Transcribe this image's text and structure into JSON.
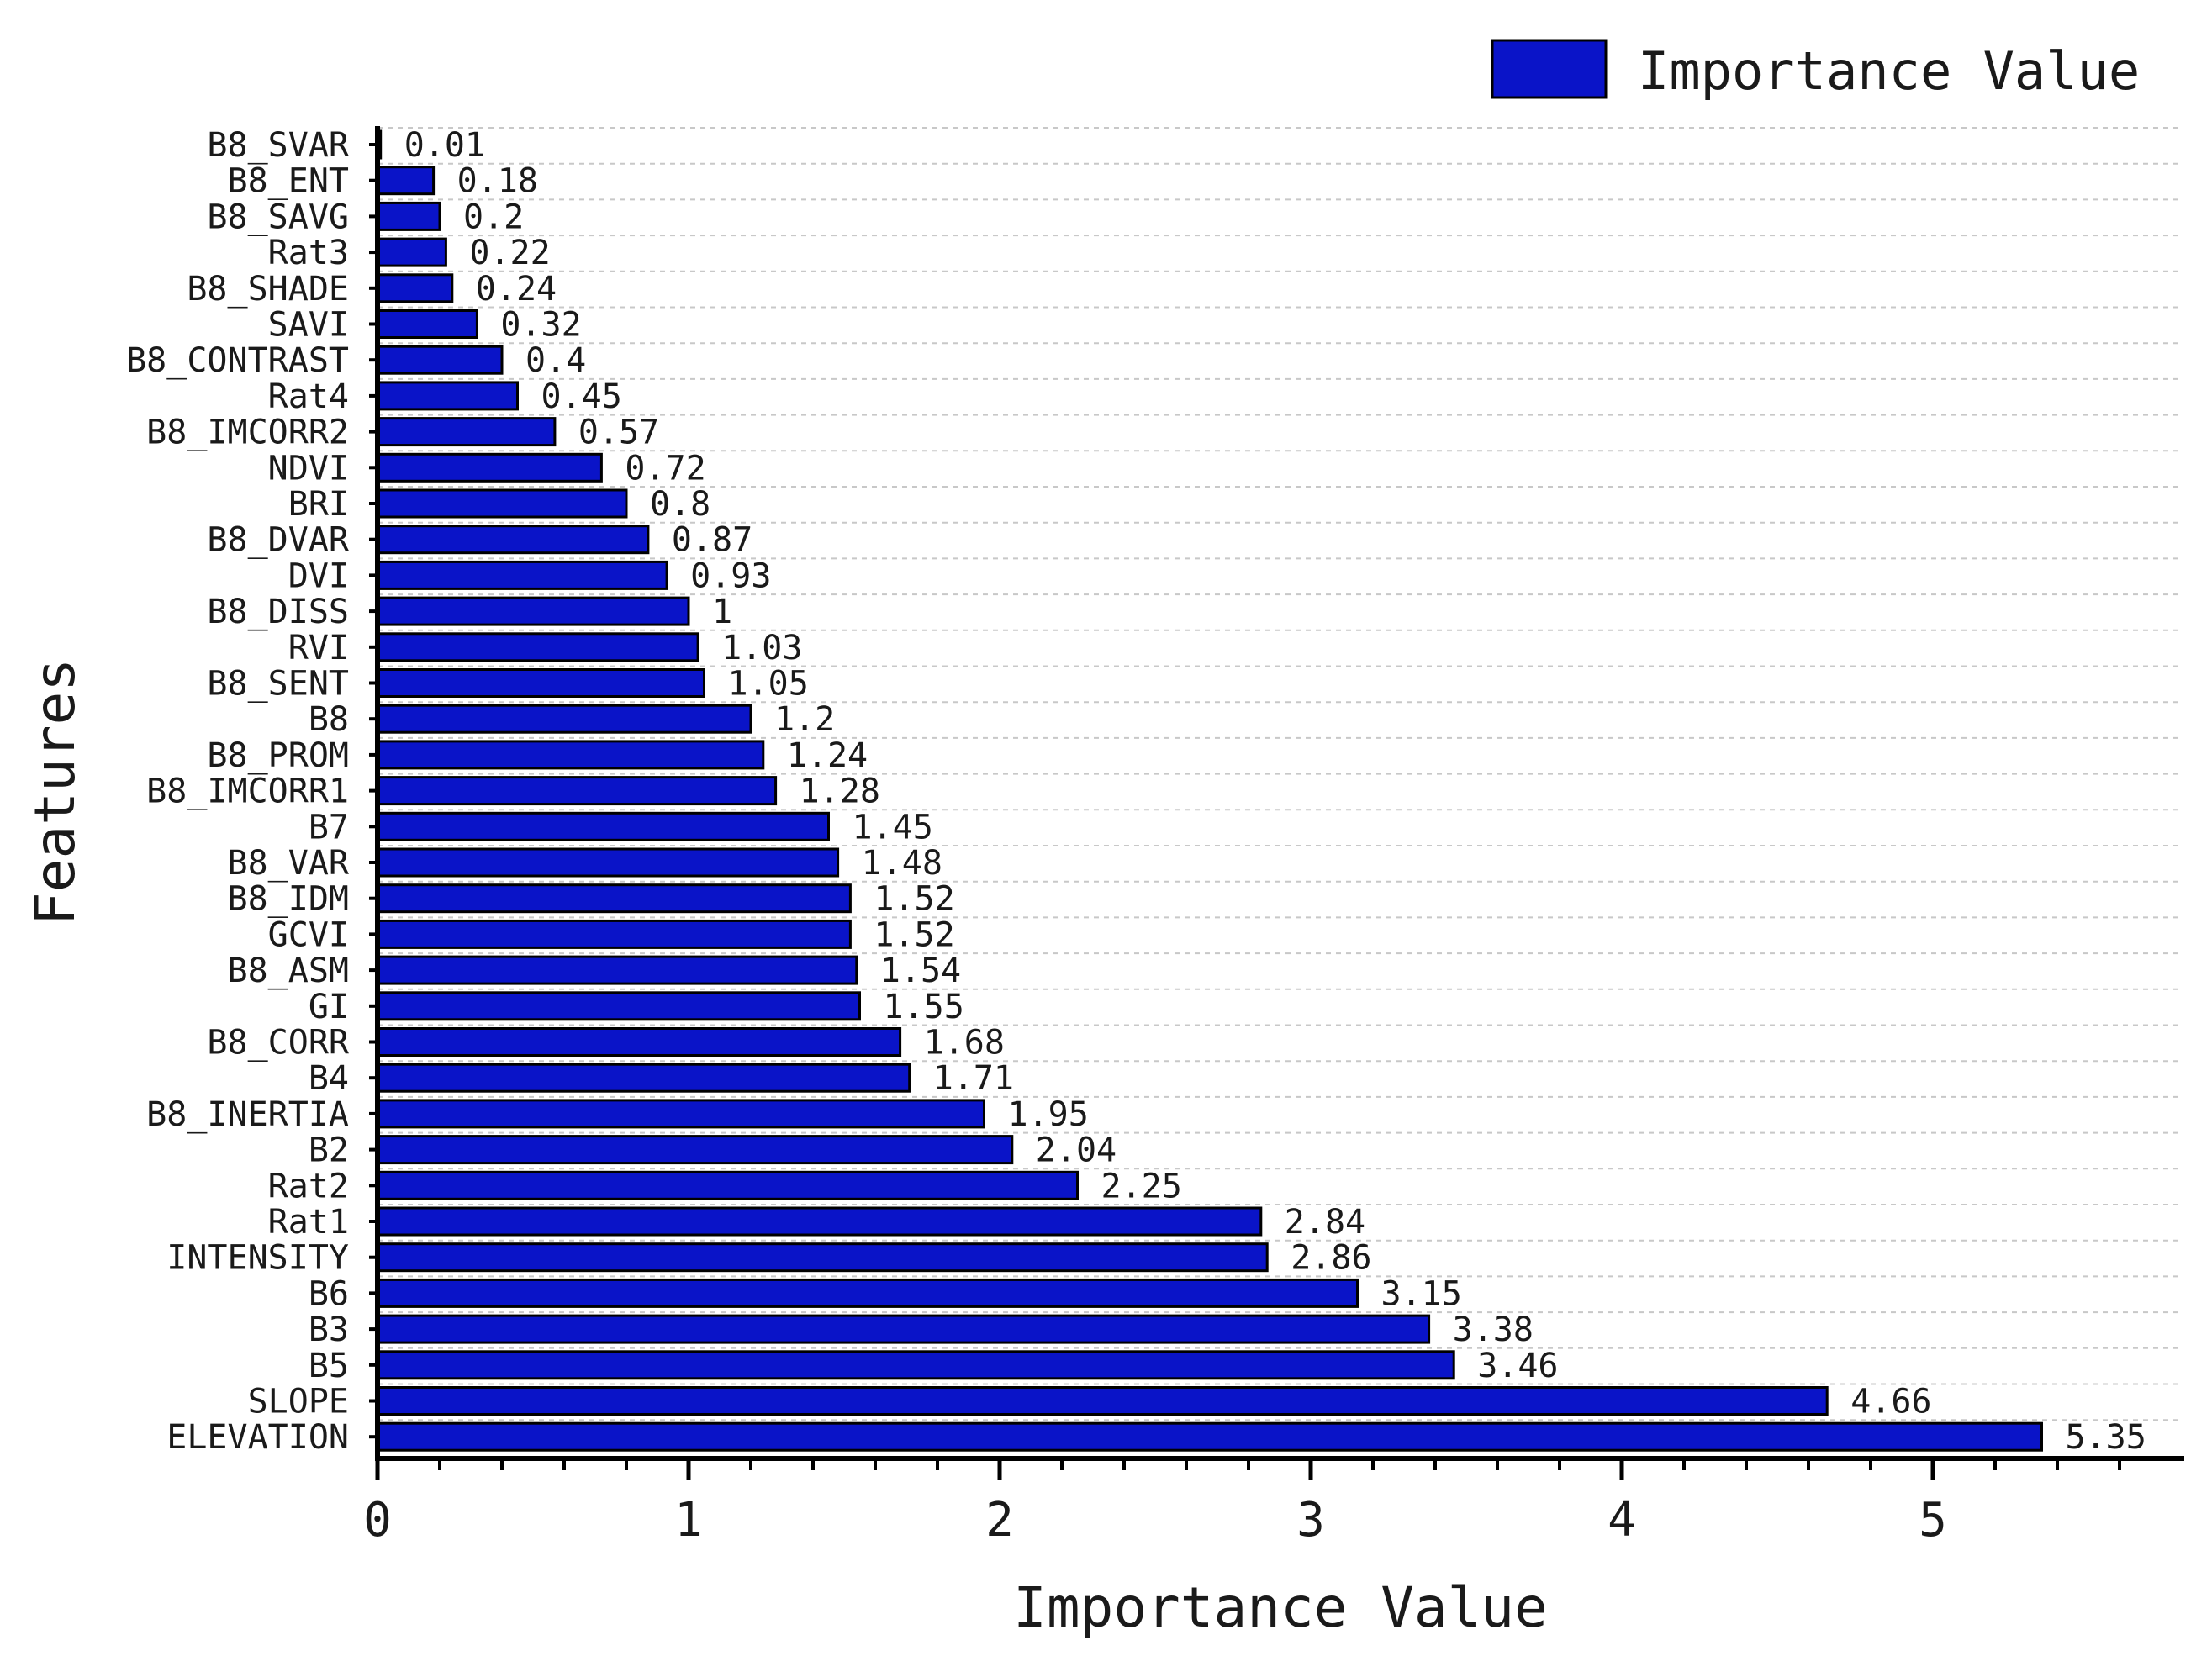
{
  "chart_data": {
    "type": "bar",
    "orientation": "horizontal",
    "categories": [
      "B8_SVAR",
      "B8_ENT",
      "B8_SAVG",
      "Rat3",
      "B8_SHADE",
      "SAVI",
      "B8_CONTRAST",
      "Rat4",
      "B8_IMCORR2",
      "NDVI",
      "BRI",
      "B8_DVAR",
      "DVI",
      "B8_DISS",
      "RVI",
      "B8_SENT",
      "B8",
      "B8_PROM",
      "B8_IMCORR1",
      "B7",
      "B8_VAR",
      "B8_IDM",
      "GCVI",
      "B8_ASM",
      "GI",
      "B8_CORR",
      "B4",
      "B8_INERTIA",
      "B2",
      "Rat2",
      "Rat1",
      "INTENSITY",
      "B6",
      "B3",
      "B5",
      "SLOPE",
      "ELEVATION"
    ],
    "values": [
      0.01,
      0.18,
      0.2,
      0.22,
      0.24,
      0.32,
      0.4,
      0.45,
      0.57,
      0.72,
      0.8,
      0.87,
      0.93,
      1,
      1.03,
      1.05,
      1.2,
      1.24,
      1.28,
      1.45,
      1.48,
      1.52,
      1.52,
      1.54,
      1.55,
      1.68,
      1.71,
      1.95,
      2.04,
      2.25,
      2.84,
      2.86,
      3.15,
      3.38,
      3.46,
      4.66,
      5.35
    ],
    "value_labels": [
      "0.01",
      "0.18",
      "0.2",
      "0.22",
      "0.24",
      "0.32",
      "0.4",
      "0.45",
      "0.57",
      "0.72",
      "0.8",
      "0.87",
      "0.93",
      "1",
      "1.03",
      "1.05",
      "1.2",
      "1.24",
      "1.28",
      "1.45",
      "1.48",
      "1.52",
      "1.52",
      "1.54",
      "1.55",
      "1.68",
      "1.71",
      "1.95",
      "2.04",
      "2.25",
      "2.84",
      "2.86",
      "3.15",
      "3.38",
      "3.46",
      "4.66",
      "5.35"
    ],
    "series": [
      {
        "name": "Importance Value",
        "color": "#0a14c8"
      }
    ],
    "xlabel": "Importance Value",
    "ylabel": "Features",
    "xlim": [
      0,
      5.8
    ],
    "xticks": [
      0,
      1,
      2,
      3,
      4,
      5
    ],
    "xtick_labels": [
      "0",
      "1",
      "2",
      "3",
      "4",
      "5"
    ],
    "grid": "horizontal dashed",
    "legend": "top-right"
  }
}
